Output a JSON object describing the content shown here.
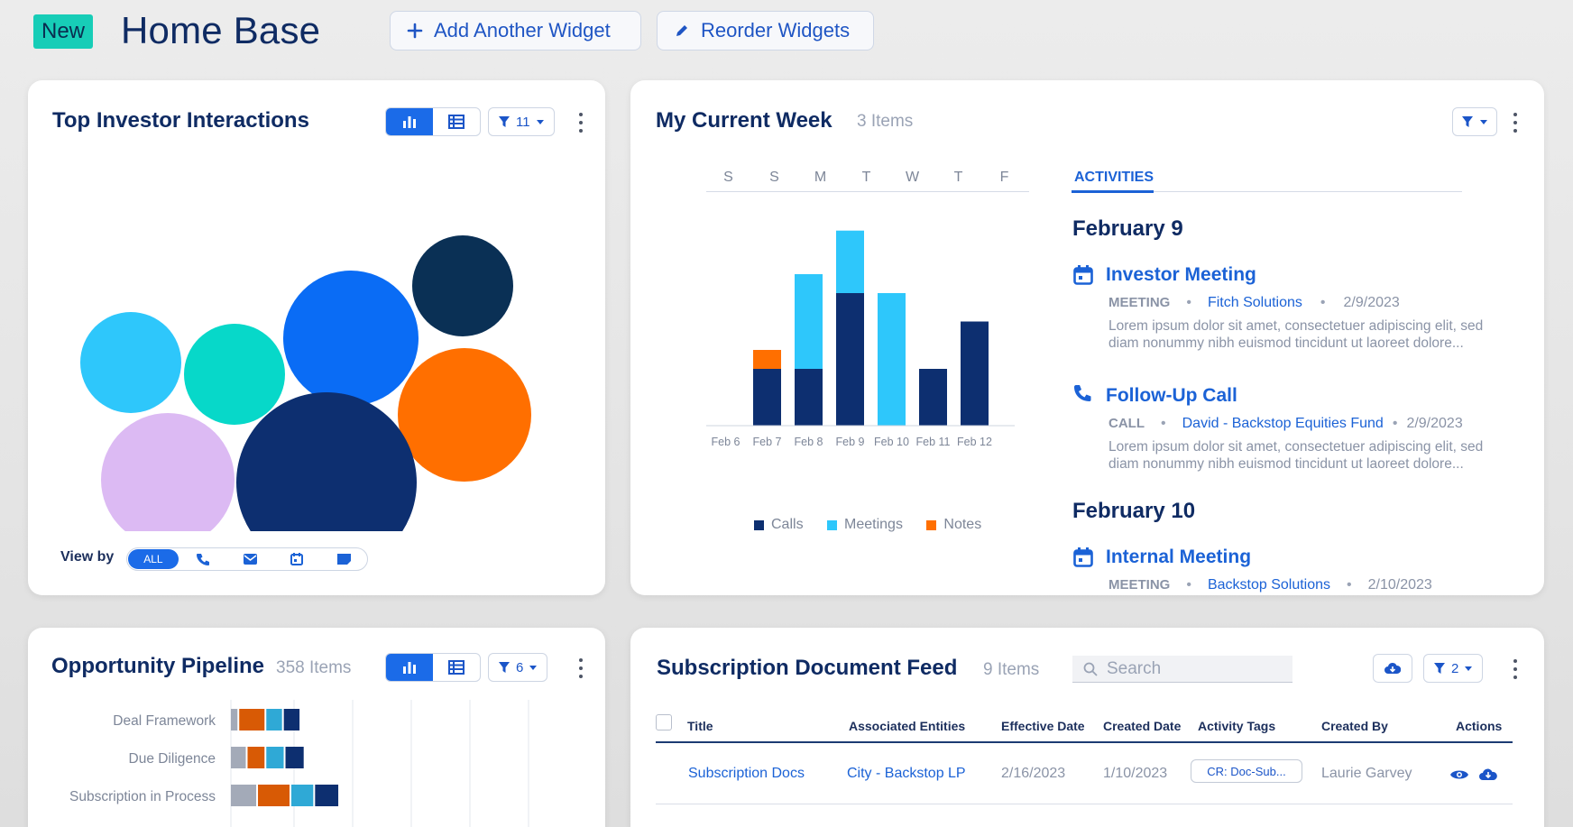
{
  "header": {
    "badge": "New",
    "title": "Home Base",
    "add_widget": "Add Another Widget",
    "reorder": "Reorder Widgets"
  },
  "top_investor": {
    "title": "Top Investor Interactions",
    "filter_count": "11",
    "view_by_label": "View by",
    "view_all": "ALL",
    "bubbles": [
      {
        "color": "#2ec7fb"
      },
      {
        "color": "#07d8c9"
      },
      {
        "color": "#0a6cf5"
      },
      {
        "color": "#0a3055"
      },
      {
        "color": "#ff6f00"
      },
      {
        "color": "#dcbaf3"
      },
      {
        "color": "#0d2f70"
      }
    ]
  },
  "current_week": {
    "title": "My Current Week",
    "count": "3 Items",
    "days": [
      "S",
      "S",
      "M",
      "T",
      "W",
      "T",
      "F"
    ],
    "tab": "ACTIVITIES",
    "chart_data": {
      "type": "bar",
      "stacked": true,
      "categories": [
        "Feb 6",
        "Feb 7",
        "Feb 8",
        "Feb 9",
        "Feb 10",
        "Feb 11",
        "Feb 12"
      ],
      "series": [
        {
          "name": "Calls",
          "color": "#0d2f70",
          "values": [
            0,
            3,
            3,
            7,
            0,
            3,
            5.5
          ]
        },
        {
          "name": "Meetings",
          "color": "#2ec7fb",
          "values": [
            0,
            0,
            5,
            3.3,
            7,
            0,
            0
          ]
        },
        {
          "name": "Notes",
          "color": "#ff6f00",
          "values": [
            0,
            1,
            0,
            0,
            0,
            0,
            0
          ]
        }
      ],
      "ylim": [
        0,
        11
      ]
    },
    "groups": [
      {
        "date": "February 9",
        "items": [
          {
            "title": "Investor Meeting",
            "type": "MEETING",
            "entity": "Fitch Solutions",
            "date": "2/9/2023",
            "desc1": "Lorem ipsum dolor sit amet, consectetuer adipiscing elit, sed",
            "desc2": "diam nonummy nibh euismod tincidunt ut laoreet dolore..."
          },
          {
            "title": "Follow-Up Call",
            "type": "CALL",
            "entity": "David - Backstop Equities Fund",
            "date": "2/9/2023",
            "desc1": "Lorem ipsum dolor sit amet, consectetuer adipiscing elit, sed",
            "desc2": "diam nonummy nibh euismod tincidunt ut laoreet dolore..."
          }
        ]
      },
      {
        "date": "February 10",
        "items": [
          {
            "title": "Internal Meeting",
            "type": "MEETING",
            "entity": "Backstop Solutions",
            "date": "2/10/2023"
          }
        ]
      }
    ]
  },
  "pipeline": {
    "title": "Opportunity Pipeline",
    "count": "358 Items",
    "filter_count": "6",
    "chart_data": {
      "type": "bar",
      "orientation": "horizontal",
      "stacked": true,
      "categories": [
        "Deal Framework",
        "Due Diligence",
        "Subscription in Process"
      ],
      "series": [
        {
          "color": "#a3aab8",
          "values": [
            2,
            4,
            6.5
          ]
        },
        {
          "color": "#d85a05",
          "values": [
            6.5,
            4.5,
            8
          ]
        },
        {
          "color": "#2fa9d6",
          "values": [
            4.2,
            4.6,
            5.7
          ]
        },
        {
          "color": "#0d2f70",
          "values": [
            4.2,
            4.8,
            6
          ]
        }
      ]
    }
  },
  "subscription": {
    "title": "Subscription Document Feed",
    "count": "9 Items",
    "search_placeholder": "Search",
    "filter_count": "2",
    "columns": [
      "Title",
      "Associated Entities",
      "Effective Date",
      "Created Date",
      "Activity Tags",
      "Created By",
      "Actions"
    ],
    "rows": [
      {
        "title": "Subscription Docs",
        "entity": "City - Backstop LP",
        "effective": "2/16/2023",
        "created": "1/10/2023",
        "tag": "CR: Doc-Sub...",
        "by": "Laurie Garvey"
      }
    ]
  }
}
